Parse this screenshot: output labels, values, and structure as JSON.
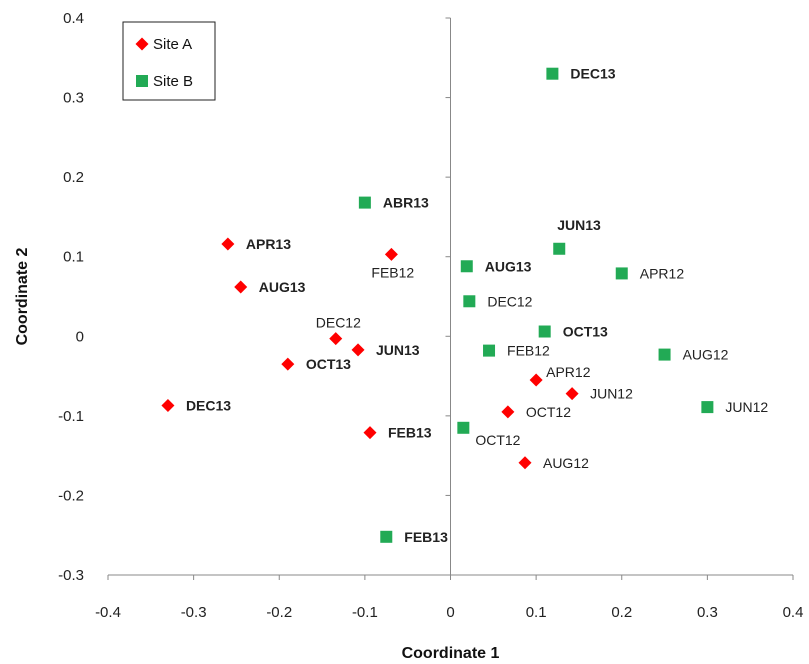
{
  "chart_data": {
    "type": "scatter",
    "xlabel": "Coordinate 1",
    "ylabel": "Coordinate 2",
    "xlim": [
      -0.4,
      0.4
    ],
    "ylim": [
      -0.3,
      0.4
    ],
    "xticks": [
      "-0.4",
      "-0.3",
      "-0.2",
      "-0.1",
      "0",
      "0.1",
      "0.2",
      "0.3",
      "0.4"
    ],
    "yticks": [
      "-0.3",
      "-0.2",
      "-0.1",
      "0",
      "0.1",
      "0.2",
      "0.3",
      "0.4"
    ],
    "grid": false,
    "legend_position": "top-left",
    "series": [
      {
        "name": "Site A",
        "marker": "diamond",
        "color": "#ff0000",
        "points": [
          {
            "x": -0.26,
            "y": 0.116,
            "label": "APR13",
            "bold": true
          },
          {
            "x": -0.245,
            "y": 0.062,
            "label": "AUG13",
            "bold": true
          },
          {
            "x": -0.069,
            "y": 0.103,
            "label": "FEB12",
            "bold": false
          },
          {
            "x": -0.134,
            "y": -0.003,
            "label": "DEC12",
            "bold": false
          },
          {
            "x": -0.108,
            "y": -0.017,
            "label": "JUN13",
            "bold": true
          },
          {
            "x": -0.19,
            "y": -0.035,
            "label": "OCT13",
            "bold": true
          },
          {
            "x": -0.33,
            "y": -0.087,
            "label": "DEC13",
            "bold": true
          },
          {
            "x": -0.094,
            "y": -0.121,
            "label": "FEB13",
            "bold": true
          },
          {
            "x": 0.1,
            "y": -0.055,
            "label": "APR12",
            "bold": false
          },
          {
            "x": 0.142,
            "y": -0.072,
            "label": "JUN12",
            "bold": false
          },
          {
            "x": 0.067,
            "y": -0.095,
            "label": "OCT12",
            "bold": false
          },
          {
            "x": 0.087,
            "y": -0.159,
            "label": "AUG12",
            "bold": false
          }
        ]
      },
      {
        "name": "Site B",
        "marker": "square",
        "color": "#22aa55",
        "points": [
          {
            "x": 0.119,
            "y": 0.33,
            "label": "DEC13",
            "bold": true
          },
          {
            "x": -0.1,
            "y": 0.168,
            "label": "ABR13",
            "bold": true
          },
          {
            "x": 0.127,
            "y": 0.11,
            "label": "JUN13",
            "bold": true
          },
          {
            "x": 0.2,
            "y": 0.079,
            "label": "APR12",
            "bold": false
          },
          {
            "x": 0.019,
            "y": 0.088,
            "label": "AUG13",
            "bold": true
          },
          {
            "x": 0.022,
            "y": 0.044,
            "label": "DEC12",
            "bold": false
          },
          {
            "x": 0.11,
            "y": 0.006,
            "label": "OCT13",
            "bold": true
          },
          {
            "x": 0.045,
            "y": -0.018,
            "label": "FEB12",
            "bold": false
          },
          {
            "x": 0.25,
            "y": -0.023,
            "label": "AUG12",
            "bold": false
          },
          {
            "x": 0.3,
            "y": -0.089,
            "label": "JUN12",
            "bold": false
          },
          {
            "x": 0.015,
            "y": -0.115,
            "label": "OCT12",
            "bold": false
          },
          {
            "x": -0.075,
            "y": -0.252,
            "label": "FEB13",
            "bold": true
          }
        ]
      }
    ]
  }
}
